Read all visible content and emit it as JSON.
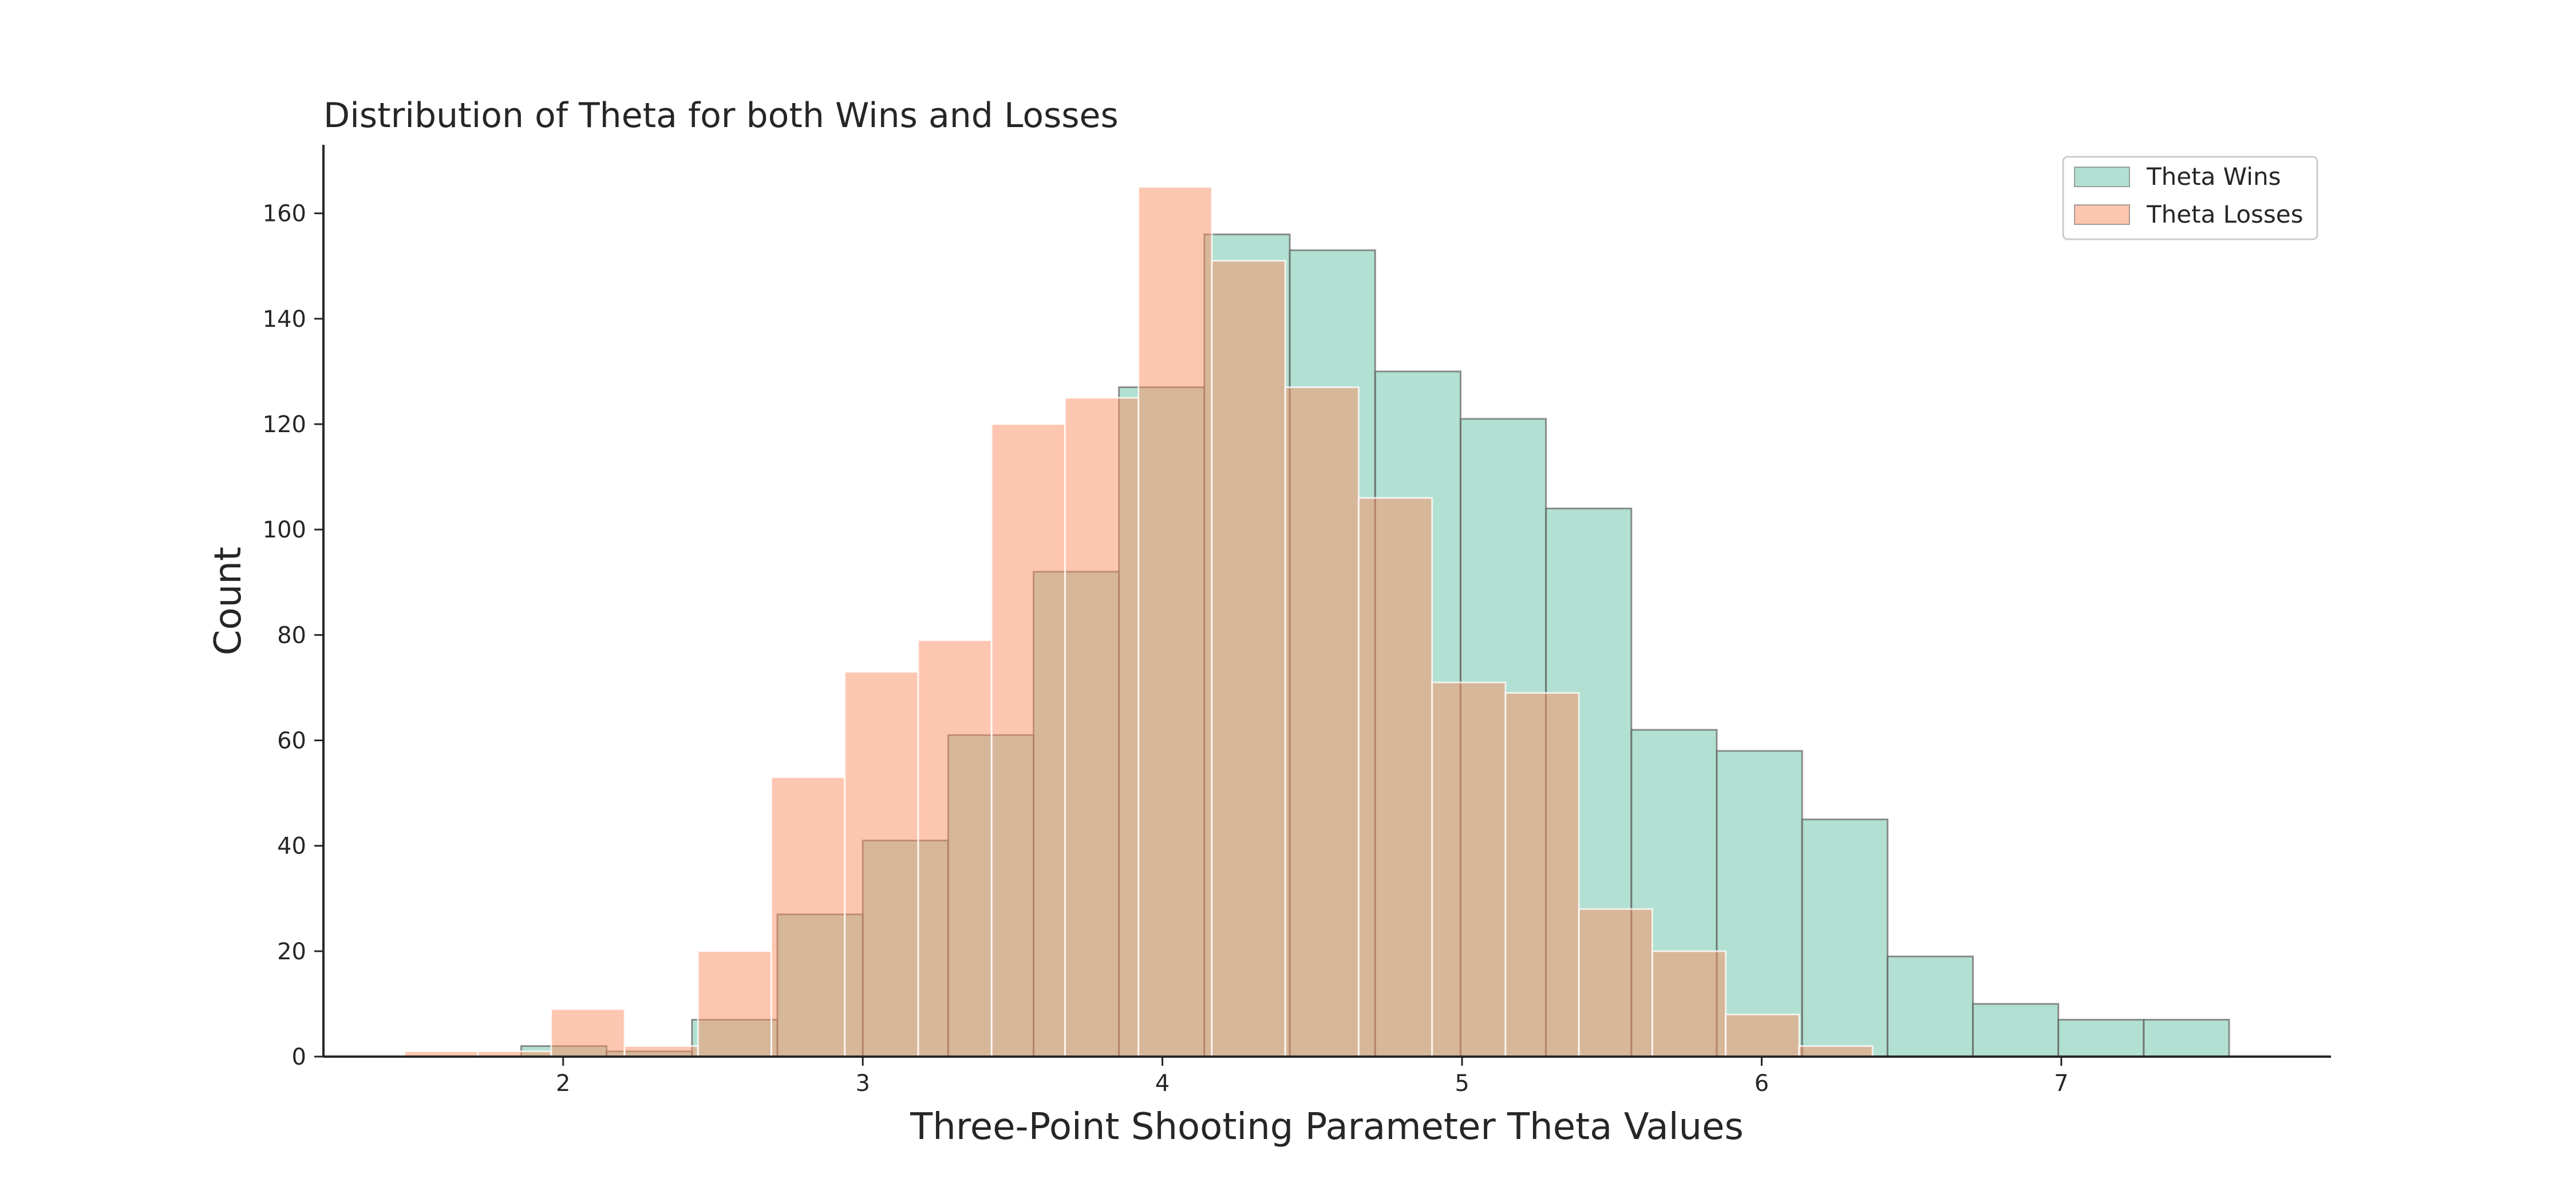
{
  "chart_data": {
    "type": "bar",
    "title": "Distribution of Theta for both Wins and Losses",
    "xlabel": "Three-Point Shooting Parameter Theta Values",
    "ylabel": "Count",
    "xlim": [
      1.2,
      7.9
    ],
    "ylim": [
      0,
      173
    ],
    "xticks": [
      2,
      3,
      4,
      5,
      6,
      7
    ],
    "yticks": [
      0,
      20,
      40,
      60,
      80,
      100,
      120,
      140,
      160
    ],
    "grid": false,
    "legend_position": "top-right",
    "series": [
      {
        "name": "Theta Wins",
        "color": "#66c2a5",
        "edge_color": "#6b6b6b",
        "opacity": 0.5,
        "bin_edges": [
          1.86,
          2.145,
          2.43,
          2.715,
          3.0,
          3.285,
          3.57,
          3.855,
          4.14,
          4.425,
          4.71,
          4.995,
          5.28,
          5.565,
          5.85,
          6.135,
          6.42,
          6.705,
          6.99,
          7.275,
          7.56
        ],
        "counts": [
          2,
          1,
          7,
          27,
          41,
          61,
          92,
          127,
          156,
          153,
          130,
          121,
          104,
          62,
          58,
          45,
          19,
          10,
          7,
          7
        ]
      },
      {
        "name": "Theta Losses",
        "color": "#fc8d62",
        "edge_color": "#ffffff",
        "opacity": 0.5,
        "bin_edges": [
          1.47,
          1.715,
          1.96,
          2.205,
          2.45,
          2.695,
          2.94,
          3.185,
          3.43,
          3.675,
          3.92,
          4.165,
          4.41,
          4.655,
          4.9,
          5.145,
          5.39,
          5.635,
          5.88,
          6.125,
          6.37
        ],
        "counts": [
          1,
          1,
          9,
          2,
          20,
          53,
          73,
          79,
          120,
          125,
          165,
          151,
          127,
          106,
          71,
          69,
          28,
          20,
          8,
          2
        ]
      }
    ]
  }
}
